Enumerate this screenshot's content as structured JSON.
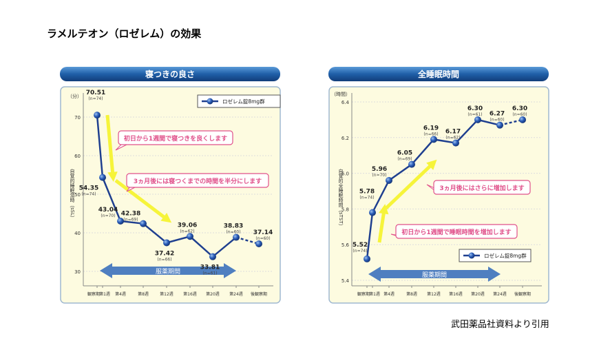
{
  "page": {
    "title": "ラメルテオン（ロゼレム）の効果",
    "source": "武田薬品社資料より引用"
  },
  "colors": {
    "line": "#1f3f8f",
    "panel_bg": "#fdfbe0",
    "header": "#1f5fa8",
    "callout": "#e0508a",
    "arrow": "#f6f43a",
    "period": "#4f7fc0"
  },
  "chart_data": [
    {
      "type": "line",
      "title": "寝つきの良さ",
      "unit_label": "（分）",
      "ylabel": "自覚的睡眠潜時（sSL）",
      "ylim": [
        30,
        70
      ],
      "yticks": [
        "30",
        "40",
        "50",
        "60",
        "70"
      ],
      "categories": [
        "観察期",
        "第1週",
        "第4週",
        "第8週",
        "第12週",
        "第16週",
        "第20週",
        "第24週",
        "後観察期"
      ],
      "legend": "ロゼレム錠8mg群",
      "legend_position": "top-right",
      "period_label": "服薬期間",
      "series": [
        {
          "name": "ロゼレム錠8mg群",
          "values": [
            70.51,
            54.35,
            43.04,
            42.38,
            37.42,
            39.06,
            33.81,
            38.83,
            37.14
          ],
          "labels": [
            "70.51",
            "54.35",
            "43.04",
            "42.38",
            "37.42",
            "39.06",
            "33.81",
            "38.83",
            "37.14"
          ],
          "n": [
            "(n=74)",
            "(n=74)",
            "(n=70)",
            "(n=69)",
            "(n=66)",
            "(n=62)",
            "(n=61)",
            "(n=60)",
            "(n=60)"
          ]
        }
      ],
      "annotations": [
        "初日から1週間で寝つきを良くします",
        "3ヵ月後には寝つくまでの時間を半分にします"
      ]
    },
    {
      "type": "line",
      "title": "全睡眠時間",
      "unit_label": "（時間）",
      "ylabel": "自覚的全睡眠時間（sTST）",
      "ylim": [
        5.4,
        6.4
      ],
      "yticks": [
        "5.4",
        "5.6",
        "5.8",
        "6.0",
        "6.2",
        "6.4"
      ],
      "categories": [
        "観察期",
        "第1週",
        "第4週",
        "第8週",
        "第12週",
        "第16週",
        "第20週",
        "第24週",
        "後観察期"
      ],
      "legend": "ロゼレム錠8mg群",
      "legend_position": "bottom-right",
      "period_label": "服薬期間",
      "series": [
        {
          "name": "ロゼレム錠8mg群",
          "values": [
            5.52,
            5.78,
            5.96,
            6.05,
            6.19,
            6.17,
            6.3,
            6.27,
            6.3
          ],
          "labels": [
            "5.52",
            "5.78",
            "5.96",
            "6.05",
            "6.19",
            "6.17",
            "6.30",
            "6.27",
            "6.30"
          ],
          "n": [
            "(n=74)",
            "(n=74)",
            "(n=70)",
            "(n=69)",
            "(n=66)",
            "(n=62)",
            "(n=61)",
            "(n=60)",
            "(n=60)"
          ]
        }
      ],
      "annotations": [
        "3ヵ月後にはさらに増加します",
        "初日から1週間で睡眠時間を増加します"
      ]
    }
  ]
}
